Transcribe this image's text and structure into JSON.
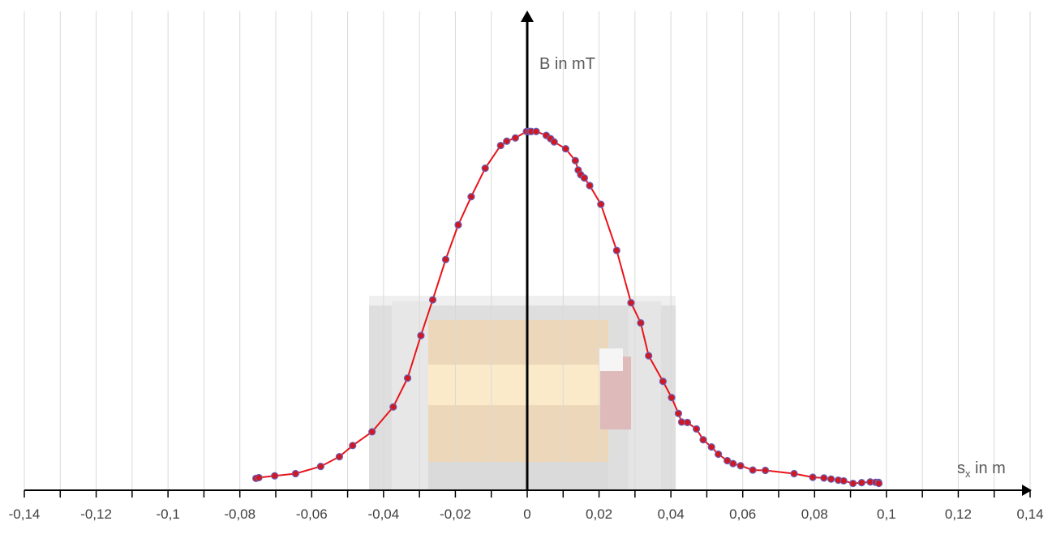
{
  "chart_data": {
    "type": "scatter",
    "title": "",
    "xlabel": "s",
    "xlabel_subscript": "x",
    "xlabel_suffix": " in m",
    "ylabel": "B in mT",
    "xlim": [
      -0.14,
      0.14
    ],
    "ylim": [
      0,
      1.0
    ],
    "x_ticks": [
      "-0,14",
      "-0,12",
      "-0,1",
      "-0,08",
      "-0,06",
      "-0,04",
      "-0,02",
      "0",
      "0,02",
      "0,04",
      "0,06",
      "0,08",
      "0,1",
      "0,12",
      "0,14"
    ],
    "x_tick_values": [
      -0.14,
      -0.12,
      -0.1,
      -0.08,
      -0.06,
      -0.04,
      -0.02,
      0,
      0.02,
      0.04,
      0.06,
      0.08,
      0.1,
      0.12,
      0.14
    ],
    "grid": "vertical",
    "background_image": "coil-photo",
    "colors": {
      "line": "#e8141b",
      "marker_fill": "#d1171f",
      "marker_edge": "#6a60b8",
      "grid": "#d9d9d9",
      "axis": "#000000"
    },
    "series": [
      {
        "x": [
          -0.0755,
          -0.0747,
          -0.0703,
          -0.0645,
          -0.0575,
          -0.0523,
          -0.0486,
          -0.0432,
          -0.0373,
          -0.0333,
          -0.0296,
          -0.0263,
          -0.0227,
          -0.0192,
          -0.0156,
          -0.0117,
          -0.0074,
          -0.0057,
          -0.0033,
          -0.0002,
          0.0005,
          0.0011,
          0.0025,
          0.0053,
          0.0065,
          0.0075,
          0.0107,
          0.0134,
          0.0142,
          0.0149,
          0.0159,
          0.0174,
          0.0205,
          0.0249,
          0.0289,
          0.0316,
          0.0338,
          0.0378,
          0.0402,
          0.0421,
          0.043,
          0.0446,
          0.0471,
          0.049,
          0.0513,
          0.0532,
          0.0557,
          0.0573,
          0.0594,
          0.0628,
          0.0663,
          0.0743,
          0.0795,
          0.0826,
          0.0846,
          0.0866,
          0.0881,
          0.0907,
          0.0931,
          0.0955,
          0.097,
          0.0978,
          0.0979
        ],
        "y": [
          0.033,
          0.035,
          0.04,
          0.046,
          0.066,
          0.093,
          0.124,
          0.162,
          0.231,
          0.311,
          0.429,
          0.528,
          0.64,
          0.736,
          0.814,
          0.893,
          0.956,
          0.968,
          0.977,
          0.995,
          0.995,
          0.995,
          0.995,
          0.984,
          0.975,
          0.966,
          0.947,
          0.914,
          0.888,
          0.875,
          0.866,
          0.845,
          0.793,
          0.665,
          0.52,
          0.464,
          0.373,
          0.302,
          0.257,
          0.213,
          0.189,
          0.188,
          0.17,
          0.14,
          0.12,
          0.1,
          0.082,
          0.074,
          0.068,
          0.056,
          0.055,
          0.046,
          0.036,
          0.034,
          0.031,
          0.028,
          0.026,
          0.019,
          0.021,
          0.023,
          0.022,
          0.022,
          0.019
        ]
      }
    ]
  }
}
